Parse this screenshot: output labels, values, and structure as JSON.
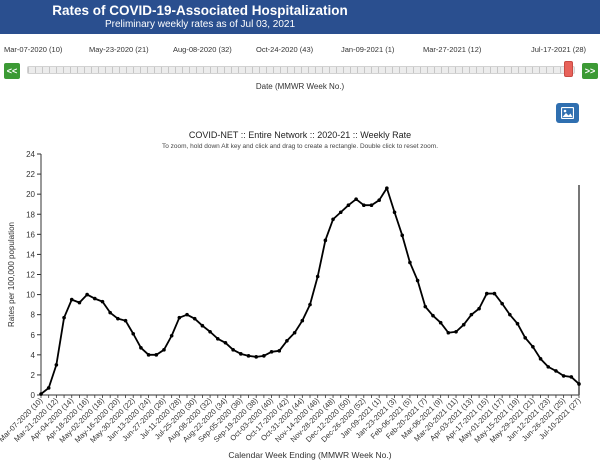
{
  "header": {
    "title": "Rates of COVID-19-Associated Hospitalization",
    "subtitle": "Preliminary weekly rates as of Jul 03, 2021"
  },
  "slider": {
    "labels": [
      "Mar-07-2020 (10)",
      "May-23-2020 (21)",
      "Aug-08-2020 (32)",
      "Oct-24-2020 (43)",
      "Jan-09-2021 (1)",
      "Mar-27-2021 (12)",
      "Jul-17-2021 (28)"
    ],
    "prev_label": "<<",
    "next_label": ">>",
    "caption": "Date (MMWR Week No.)",
    "position": 0.985
  },
  "image_button_icon": "image-icon",
  "colors": {
    "banner": "#2a4f8f",
    "nav_button": "#3c9a35",
    "handle": "#e8625a",
    "line": "#000000"
  },
  "chart_data": {
    "type": "line",
    "title": "COVID-NET :: Entire Network :: 2020-21 :: Weekly Rate",
    "subtitle": "To zoom, hold down Alt key and click and drag to create a rectangle. Double click to reset zoom.",
    "xlabel": "Calendar Week Ending (MMWR Week No.)",
    "ylabel": "Rates per 100,000 population",
    "ylim": [
      0,
      24
    ],
    "yticks": [
      0,
      2,
      4,
      6,
      8,
      10,
      12,
      14,
      16,
      18,
      20,
      22,
      24
    ],
    "grid": false,
    "categories": [
      "Mar-07-2020 (10)",
      "Mar-14-2020 (11)",
      "Mar-21-2020 (12)",
      "Mar-28-2020 (13)",
      "Apr-04-2020 (14)",
      "Apr-11-2020 (15)",
      "Apr-18-2020 (16)",
      "Apr-25-2020 (17)",
      "May-02-2020 (18)",
      "May-09-2020 (19)",
      "May-16-2020 (20)",
      "May-23-2020 (21)",
      "May-30-2020 (22)",
      "Jun-06-2020 (23)",
      "Jun-13-2020 (24)",
      "Jun-20-2020 (25)",
      "Jun-27-2020 (26)",
      "Jul-04-2020 (27)",
      "Jul-11-2020 (28)",
      "Jul-18-2020 (29)",
      "Jul-25-2020 (30)",
      "Aug-01-2020 (31)",
      "Aug-08-2020 (32)",
      "Aug-15-2020 (33)",
      "Aug-22-2020 (34)",
      "Aug-29-2020 (35)",
      "Sep-05-2020 (36)",
      "Sep-12-2020 (37)",
      "Sep-19-2020 (38)",
      "Sep-26-2020 (39)",
      "Oct-03-2020 (40)",
      "Oct-10-2020 (41)",
      "Oct-17-2020 (42)",
      "Oct-24-2020 (43)",
      "Oct-31-2020 (44)",
      "Nov-07-2020 (45)",
      "Nov-14-2020 (46)",
      "Nov-21-2020 (47)",
      "Nov-28-2020 (48)",
      "Dec-05-2020 (49)",
      "Dec-12-2020 (50)",
      "Dec-19-2020 (51)",
      "Dec-26-2020 (52)",
      "Jan-02-2021 (53)",
      "Jan-09-2021 (1)",
      "Jan-16-2021 (2)",
      "Jan-23-2021 (3)",
      "Jan-30-2021 (4)",
      "Feb-06-2021 (5)",
      "Feb-13-2021 (6)",
      "Feb-20-2021 (7)",
      "Feb-27-2021 (8)",
      "Mar-06-2021 (9)",
      "Mar-13-2021 (10)",
      "Mar-20-2021 (11)",
      "Mar-27-2021 (12)",
      "Apr-03-2021 (13)",
      "Apr-10-2021 (14)",
      "Apr-17-2021 (15)",
      "Apr-24-2021 (16)",
      "May-01-2021 (17)",
      "May-08-2021 (18)",
      "May-15-2021 (19)",
      "May-22-2021 (20)",
      "May-29-2021 (21)",
      "Jun-05-2021 (22)",
      "Jun-12-2021 (23)",
      "Jun-19-2021 (24)",
      "Jun-26-2021 (25)",
      "Jul-03-2021 (26)",
      "Jul-10-2021 (27)"
    ],
    "xtick_labels": [
      "Mar-07-2020 (10)",
      "Mar-21-2020 (12)",
      "Apr-04-2020 (14)",
      "Apr-18-2020 (16)",
      "May-02-2020 (18)",
      "May-16-2020 (20)",
      "May-30-2020 (22)",
      "Jun-13-2020 (24)",
      "Jun-27-2020 (26)",
      "Jul-11-2020 (28)",
      "Jul-25-2020 (30)",
      "Aug-08-2020 (32)",
      "Aug-22-2020 (34)",
      "Sep-05-2020 (36)",
      "Sep-19-2020 (38)",
      "Oct-03-2020 (40)",
      "Oct-17-2020 (42)",
      "Oct-31-2020 (44)",
      "Nov-14-2020 (46)",
      "Nov-28-2020 (48)",
      "Dec-12-2020 (50)",
      "Dec-26-2020 (52)",
      "Jan-09-2021 (1)",
      "Jan-23-2021 (3)",
      "Feb-06-2021 (5)",
      "Feb-20-2021 (7)",
      "Mar-06-2021 (9)",
      "Mar-20-2021 (11)",
      "Apr-03-2021 (13)",
      "Apr-17-2021 (15)",
      "May-01-2021 (17)",
      "May-15-2021 (19)",
      "May-29-2021 (21)",
      "Jun-12-2021 (23)",
      "Jun-26-2021 (25)",
      "Jul-10-2021 (27)"
    ],
    "series": [
      {
        "values": [
          0.1,
          0.7,
          3.0,
          7.7,
          9.5,
          9.2,
          10.0,
          9.6,
          9.3,
          8.2,
          7.6,
          7.4,
          6.1,
          4.7,
          4.0,
          4.0,
          4.5,
          5.9,
          7.7,
          8.0,
          7.6,
          6.9,
          6.3,
          5.6,
          5.2,
          4.5,
          4.1,
          3.9,
          3.8,
          3.9,
          4.3,
          4.4,
          5.4,
          6.2,
          7.4,
          9.0,
          11.8,
          15.4,
          17.5,
          18.2,
          18.9,
          19.5,
          18.9,
          18.9,
          19.4,
          20.6,
          18.2,
          15.9,
          13.2,
          11.4,
          8.8,
          7.9,
          7.2,
          6.2,
          6.3,
          7.0,
          8.0,
          8.6,
          10.1,
          10.1,
          9.1,
          8.0,
          7.1,
          5.7,
          4.8,
          3.6,
          2.8,
          2.4,
          1.9,
          1.8,
          1.1
        ]
      }
    ]
  }
}
